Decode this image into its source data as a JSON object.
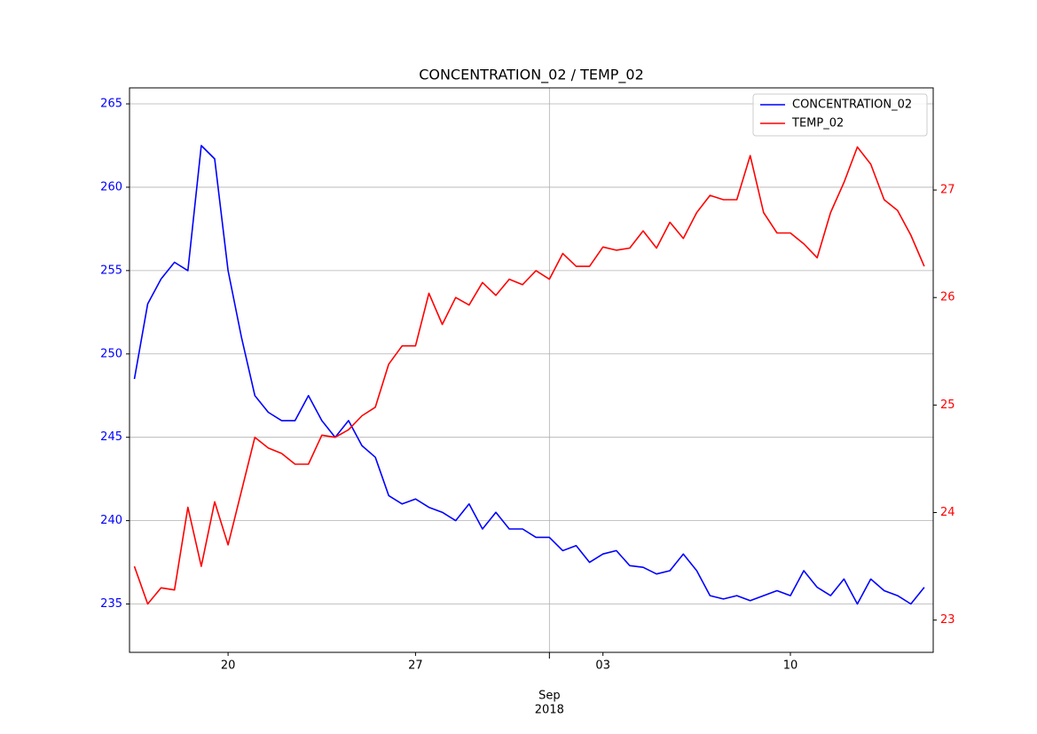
{
  "chart_data": {
    "type": "line",
    "title": "CONCENTRATION_02 / TEMP_02",
    "x": [
      "2018-08-16T12:00",
      "2018-08-17T00:00",
      "2018-08-17T12:00",
      "2018-08-18T00:00",
      "2018-08-18T12:00",
      "2018-08-19T00:00",
      "2018-08-19T12:00",
      "2018-08-20T00:00",
      "2018-08-20T12:00",
      "2018-08-21T00:00",
      "2018-08-21T12:00",
      "2018-08-22T00:00",
      "2018-08-22T12:00",
      "2018-08-23T00:00",
      "2018-08-23T12:00",
      "2018-08-24T00:00",
      "2018-08-24T12:00",
      "2018-08-25T00:00",
      "2018-08-25T12:00",
      "2018-08-26T00:00",
      "2018-08-26T12:00",
      "2018-08-27T00:00",
      "2018-08-27T12:00",
      "2018-08-28T00:00",
      "2018-08-28T12:00",
      "2018-08-29T00:00",
      "2018-08-29T12:00",
      "2018-08-30T00:00",
      "2018-08-30T12:00",
      "2018-08-31T00:00",
      "2018-08-31T12:00",
      "2018-09-01T00:00",
      "2018-09-01T12:00",
      "2018-09-02T00:00",
      "2018-09-02T12:00",
      "2018-09-03T00:00",
      "2018-09-03T12:00",
      "2018-09-04T00:00",
      "2018-09-04T12:00",
      "2018-09-05T00:00",
      "2018-09-05T12:00",
      "2018-09-06T00:00",
      "2018-09-06T12:00",
      "2018-09-07T00:00",
      "2018-09-07T12:00",
      "2018-09-08T00:00",
      "2018-09-08T12:00",
      "2018-09-09T00:00",
      "2018-09-09T12:00",
      "2018-09-10T00:00",
      "2018-09-10T12:00",
      "2018-09-11T00:00",
      "2018-09-11T12:00",
      "2018-09-12T00:00",
      "2018-09-12T12:00",
      "2018-09-13T00:00",
      "2018-09-13T12:00",
      "2018-09-14T00:00",
      "2018-09-14T12:00",
      "2018-09-15T00:00"
    ],
    "xlim": [
      "2018-08-16T07:40",
      "2018-09-15T08:00"
    ],
    "xticks": [
      {
        "value": "2018-08-20T00:00",
        "label": "20"
      },
      {
        "value": "2018-08-27T00:00",
        "label": "27"
      },
      {
        "value": "2018-09-03T00:00",
        "label": "03"
      },
      {
        "value": "2018-09-10T00:00",
        "label": "10"
      }
    ],
    "xmajor_ticks": [
      {
        "value": "2018-09-01T00:00",
        "label": "Sep"
      }
    ],
    "x_year_label": "2018",
    "ylim": [
      232.1,
      265.96
    ],
    "yticks": [
      235,
      240,
      245,
      250,
      255,
      260,
      265
    ],
    "y2lim": [
      22.7,
      27.95
    ],
    "y2ticks": [
      23,
      24,
      25,
      26,
      27
    ],
    "grid": true,
    "legend": "upper right",
    "series": [
      {
        "name": "CONCENTRATION_02",
        "color": "#0000ff",
        "values": [
          248.5,
          253,
          254.5,
          255.5,
          255,
          262.5,
          261.7,
          255,
          251,
          247.5,
          246.5,
          246,
          246,
          247.5,
          246,
          245,
          246,
          244.5,
          243.8,
          241.5,
          241,
          241.3,
          240.8,
          240.5,
          240,
          241,
          239.5,
          240.5,
          239.5,
          239.5,
          239,
          239,
          238.2,
          238.5,
          237.5,
          238,
          238.2,
          237.3,
          237.2,
          236.8,
          237,
          238,
          237,
          235.5,
          235.3,
          235.5,
          235.2,
          235.5,
          235.8,
          235.5,
          237,
          236,
          235.5,
          236.5,
          235,
          236.5,
          235.8,
          235.5,
          235,
          236
        ]
      },
      {
        "name": "TEMP_02",
        "color": "#ff0000",
        "axis": "y2",
        "values": [
          23.5,
          23.15,
          23.3,
          23.28,
          24.05,
          23.5,
          24.1,
          23.7,
          24.2,
          24.7,
          24.6,
          24.55,
          24.45,
          24.45,
          24.72,
          24.7,
          24.77,
          24.9,
          24.98,
          25.38,
          25.55,
          25.55,
          26.04,
          25.75,
          26.0,
          25.93,
          26.14,
          26.02,
          26.17,
          26.12,
          26.25,
          26.17,
          26.41,
          26.29,
          26.29,
          26.47,
          26.44,
          26.46,
          26.62,
          26.46,
          26.7,
          26.55,
          26.79,
          26.95,
          26.91,
          26.91,
          27.32,
          26.79,
          26.6,
          26.6,
          26.5,
          26.37,
          26.79,
          27.07,
          27.4,
          27.24,
          26.91,
          26.81,
          26.58,
          26.29
        ]
      }
    ]
  }
}
